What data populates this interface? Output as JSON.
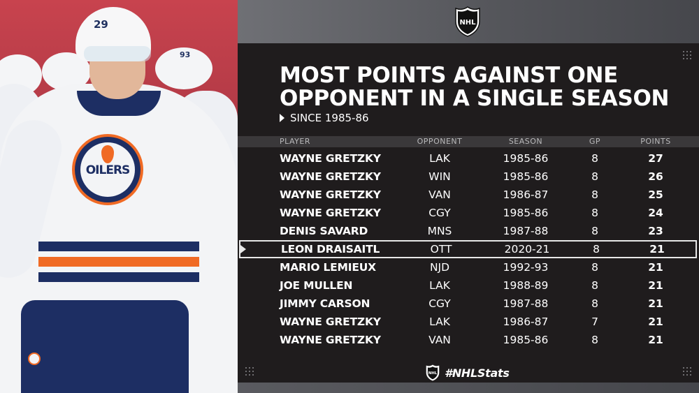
{
  "left_photo": {
    "helmet_number": "29",
    "crest_text": "OILERS",
    "bg_player_number": "93"
  },
  "brand": {
    "logo_icon": "nhl-shield-icon"
  },
  "title": "MOST POINTS AGAINST ONE OPPONENT IN A SINGLE SEASON",
  "subtitle": "SINCE 1985-86",
  "table": {
    "columns": [
      "PLAYER",
      "OPPONENT",
      "SEASON",
      "GP",
      "POINTS"
    ],
    "rows": [
      {
        "player": "WAYNE GRETZKY",
        "opponent": "LAK",
        "season": "1985-86",
        "gp": "8",
        "points": "27"
      },
      {
        "player": "WAYNE GRETZKY",
        "opponent": "WIN",
        "season": "1985-86",
        "gp": "8",
        "points": "26"
      },
      {
        "player": "WAYNE GRETZKY",
        "opponent": "VAN",
        "season": "1986-87",
        "gp": "8",
        "points": "25"
      },
      {
        "player": "WAYNE GRETZKY",
        "opponent": "CGY",
        "season": "1985-86",
        "gp": "8",
        "points": "24"
      },
      {
        "player": "DENIS SAVARD",
        "opponent": "MNS",
        "season": "1987-88",
        "gp": "8",
        "points": "23"
      },
      {
        "player": "LEON DRAISAITL",
        "opponent": "OTT",
        "season": "2020-21",
        "gp": "8",
        "points": "21",
        "highlighted": true
      },
      {
        "player": "MARIO LEMIEUX",
        "opponent": "NJD",
        "season": "1992-93",
        "gp": "8",
        "points": "21"
      },
      {
        "player": "JOE MULLEN",
        "opponent": "LAK",
        "season": "1988-89",
        "gp": "8",
        "points": "21"
      },
      {
        "player": "JIMMY CARSON",
        "opponent": "CGY",
        "season": "1987-88",
        "gp": "8",
        "points": "21"
      },
      {
        "player": "WAYNE GRETZKY",
        "opponent": "LAK",
        "season": "1986-87",
        "gp": "7",
        "points": "21"
      },
      {
        "player": "WAYNE GRETZKY",
        "opponent": "VAN",
        "season": "1985-86",
        "gp": "8",
        "points": "21"
      }
    ]
  },
  "hashtag": "#NHLStats",
  "colors": {
    "panel_bg": "#1f1c1d",
    "header_band": "#6f7075",
    "table_header_bg": "#3a383a",
    "highlight_border": "#e8e8e8",
    "oilers_navy": "#1d2e63",
    "oilers_orange": "#f06a24"
  }
}
